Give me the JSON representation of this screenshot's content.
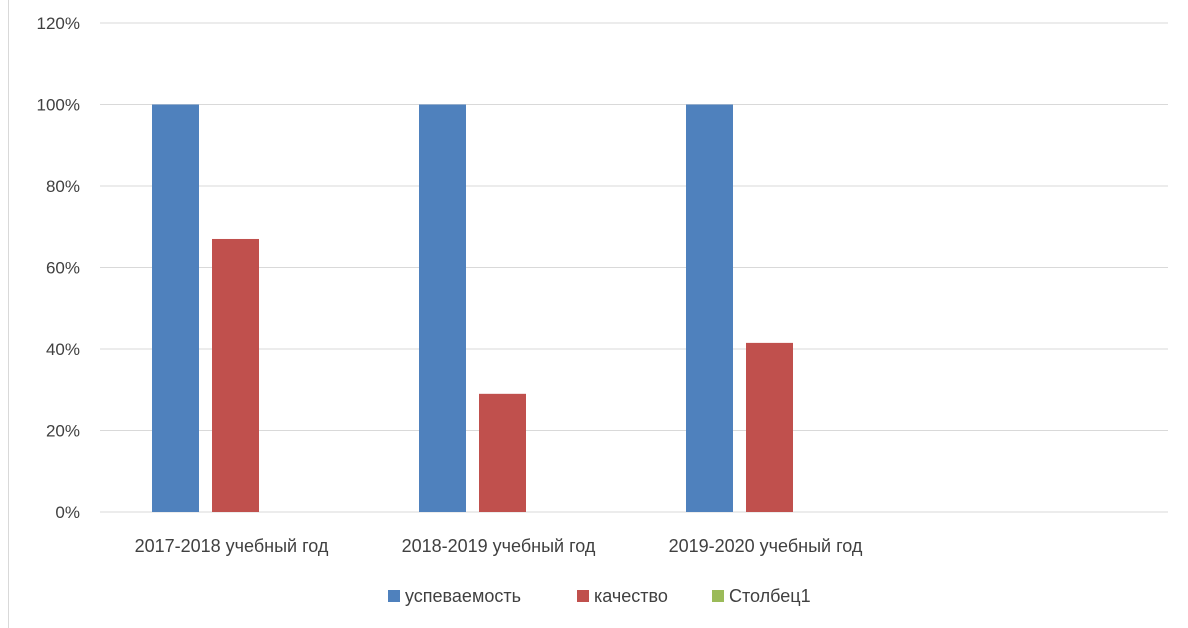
{
  "chart_data": {
    "type": "bar",
    "categories": [
      "2017-2018 учебный год",
      "2018-2019 учебный год",
      "2019-2020 учебный год",
      ""
    ],
    "series": [
      {
        "name": "успеваемость",
        "values": [
          1.0,
          1.0,
          1.0,
          null
        ],
        "color": "#4f81bd"
      },
      {
        "name": "качество",
        "values": [
          0.67,
          0.29,
          0.415,
          null
        ],
        "color": "#c0504d"
      },
      {
        "name": "Столбец1",
        "values": [
          null,
          null,
          null,
          null
        ],
        "color": "#9bbb59"
      }
    ],
    "ylim": [
      0,
      1.2
    ],
    "yticks": [
      0,
      0.2,
      0.4,
      0.6,
      0.8,
      1.0,
      1.2
    ],
    "ytick_labels": [
      "0%",
      "20%",
      "40%",
      "60%",
      "80%",
      "100%",
      "120%"
    ],
    "grid": true,
    "legend": "bottom",
    "title": "",
    "xlabel": "",
    "ylabel": ""
  }
}
